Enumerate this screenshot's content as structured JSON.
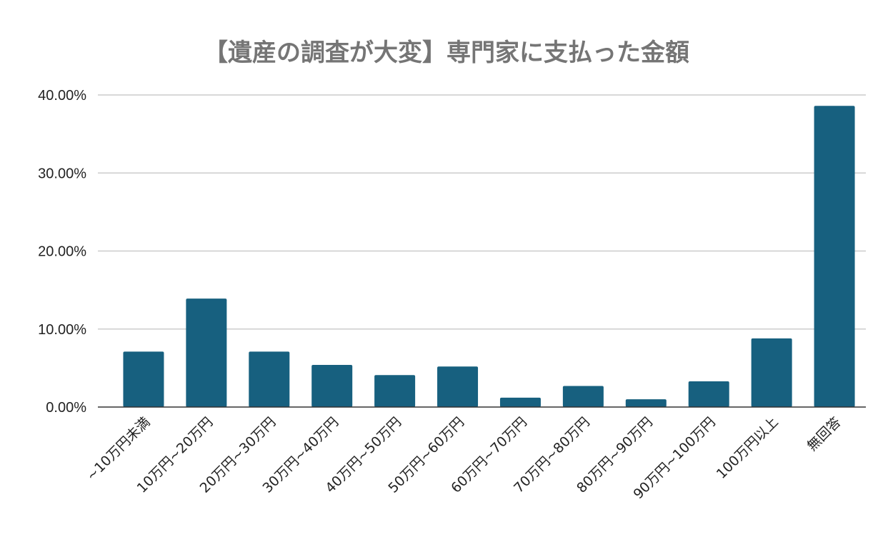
{
  "chart_data": {
    "type": "bar",
    "title": "【遺産の調査が大変】専門家に支払った金額",
    "xlabel": "",
    "ylabel": "",
    "ylim": [
      0,
      40
    ],
    "yticks": [
      "0.00%",
      "10.00%",
      "20.00%",
      "30.00%",
      "40.00%"
    ],
    "grid": true,
    "legend": "none",
    "bar_color": "#17607f",
    "categories": [
      "~10万円未満",
      "10万円~20万円",
      "20万円~30万円",
      "30万円~40万円",
      "40万円~50万円",
      "50万円~60万円",
      "60万円~70万円",
      "70万円~80万円",
      "80万円~90万円",
      "90万円~100万円",
      "100万円以上",
      "無回答"
    ],
    "values": [
      7.1,
      13.9,
      7.1,
      5.4,
      4.1,
      5.2,
      1.2,
      2.7,
      1.0,
      3.3,
      8.8,
      38.6
    ]
  }
}
